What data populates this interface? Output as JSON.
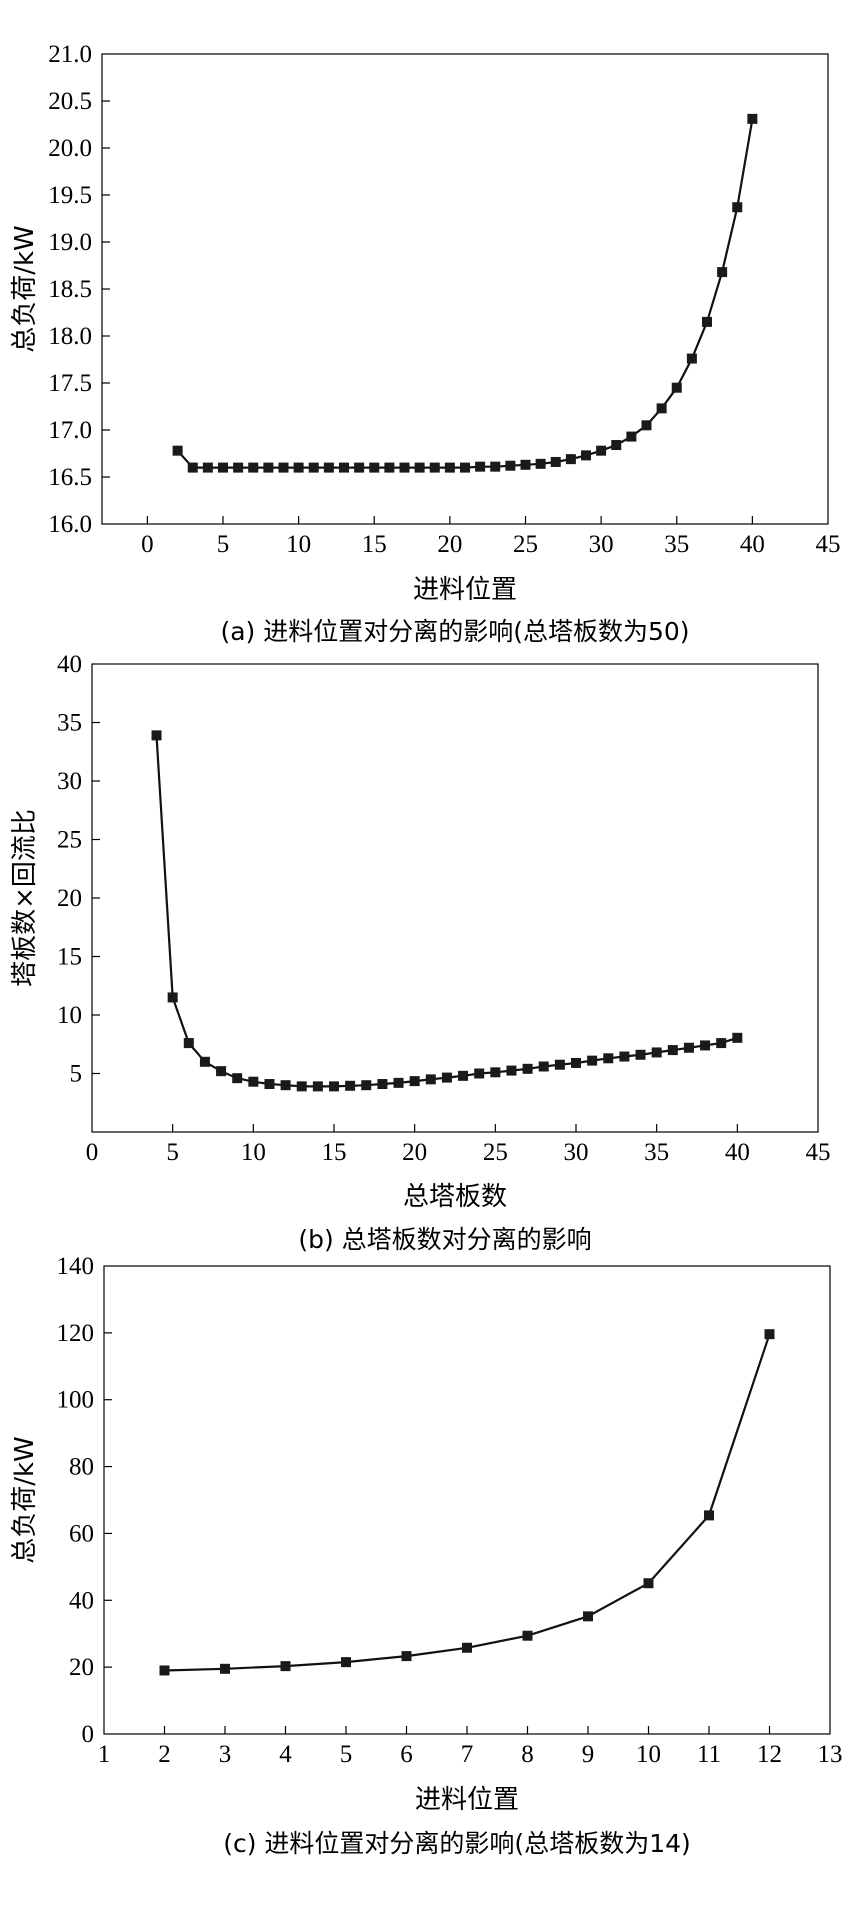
{
  "colors": {
    "series": "#1a1a1a",
    "axis": "#000000",
    "background": "#ffffff"
  },
  "chart_data": [
    {
      "type": "scatter",
      "marker": "square",
      "connected": true,
      "caption": "(a) 进料位置对分离的影响(总塔板数为50)",
      "xlabel": "进料位置",
      "ylabel": "总负荷/kW",
      "xlim": [
        -3,
        45
      ],
      "ylim": [
        16.0,
        21.0
      ],
      "xticks": [
        0,
        5,
        10,
        15,
        20,
        25,
        30,
        35,
        40,
        45
      ],
      "yticks": [
        16.0,
        16.5,
        17.0,
        17.5,
        18.0,
        18.5,
        19.0,
        19.5,
        20.0,
        20.5,
        21.0
      ],
      "ytick_labels": [
        "16.0",
        "16.5",
        "17.0",
        "17.5",
        "18.0",
        "18.5",
        "19.0",
        "19.5",
        "20.0",
        "20.5",
        "21.0"
      ],
      "series": [
        {
          "x": [
            2,
            3,
            4,
            5,
            6,
            7,
            8,
            9,
            10,
            11,
            12,
            13,
            14,
            15,
            16,
            17,
            18,
            19,
            20,
            21,
            22,
            23,
            24,
            25,
            26,
            27,
            28,
            29,
            30,
            31,
            32,
            33,
            34,
            35,
            36,
            37,
            38,
            39,
            40
          ],
          "y": [
            16.78,
            16.6,
            16.6,
            16.6,
            16.6,
            16.6,
            16.6,
            16.6,
            16.6,
            16.6,
            16.6,
            16.6,
            16.6,
            16.6,
            16.6,
            16.6,
            16.6,
            16.6,
            16.6,
            16.6,
            16.61,
            16.61,
            16.62,
            16.63,
            16.64,
            16.66,
            16.69,
            16.73,
            16.78,
            16.84,
            16.93,
            17.05,
            17.23,
            17.45,
            17.76,
            18.15,
            18.68,
            19.37,
            20.31
          ]
        }
      ]
    },
    {
      "type": "scatter",
      "marker": "square",
      "connected": true,
      "caption": "(b) 总塔板数对分离的影响",
      "xlabel": "总塔板数",
      "ylabel": "塔板数×回流比",
      "xlim": [
        0,
        45
      ],
      "ylim": [
        0,
        40
      ],
      "xticks": [
        0,
        5,
        10,
        15,
        20,
        25,
        30,
        35,
        40,
        45
      ],
      "yticks": [
        5,
        10,
        15,
        20,
        25,
        30,
        35,
        40
      ],
      "ytick_labels": [
        "5",
        "10",
        "15",
        "20",
        "25",
        "30",
        "35",
        "40"
      ],
      "series": [
        {
          "x": [
            4,
            5,
            6,
            7,
            8,
            9,
            10,
            11,
            12,
            13,
            14,
            15,
            16,
            17,
            18,
            19,
            20,
            21,
            22,
            23,
            24,
            25,
            26,
            27,
            28,
            29,
            30,
            31,
            32,
            33,
            34,
            35,
            36,
            37,
            38,
            39,
            40
          ],
          "y": [
            33.9,
            11.5,
            7.6,
            6.0,
            5.2,
            4.6,
            4.3,
            4.1,
            4.0,
            3.9,
            3.9,
            3.9,
            3.95,
            4.0,
            4.1,
            4.2,
            4.35,
            4.5,
            4.65,
            4.8,
            5.0,
            5.1,
            5.25,
            5.4,
            5.6,
            5.75,
            5.9,
            6.1,
            6.3,
            6.45,
            6.6,
            6.8,
            7.0,
            7.2,
            7.4,
            7.6,
            8.05
          ]
        }
      ]
    },
    {
      "type": "scatter",
      "marker": "square",
      "connected": true,
      "caption": "(c) 进料位置对分离的影响(总塔板数为14)",
      "xlabel": "进料位置",
      "ylabel": "总负荷/kW",
      "xlim": [
        1,
        13
      ],
      "ylim": [
        0,
        140
      ],
      "xticks": [
        1,
        2,
        3,
        4,
        5,
        6,
        7,
        8,
        9,
        10,
        11,
        12,
        13
      ],
      "yticks": [
        0,
        20,
        40,
        60,
        80,
        100,
        120,
        140
      ],
      "ytick_labels": [
        "0",
        "20",
        "40",
        "60",
        "80",
        "100",
        "120",
        "140"
      ],
      "series": [
        {
          "x": [
            2,
            3,
            4,
            5,
            6,
            7,
            8,
            9,
            10,
            11,
            12
          ],
          "y": [
            19.0,
            19.5,
            20.3,
            21.5,
            23.3,
            25.8,
            29.4,
            35.2,
            45.1,
            65.4,
            119.6
          ]
        }
      ]
    }
  ]
}
